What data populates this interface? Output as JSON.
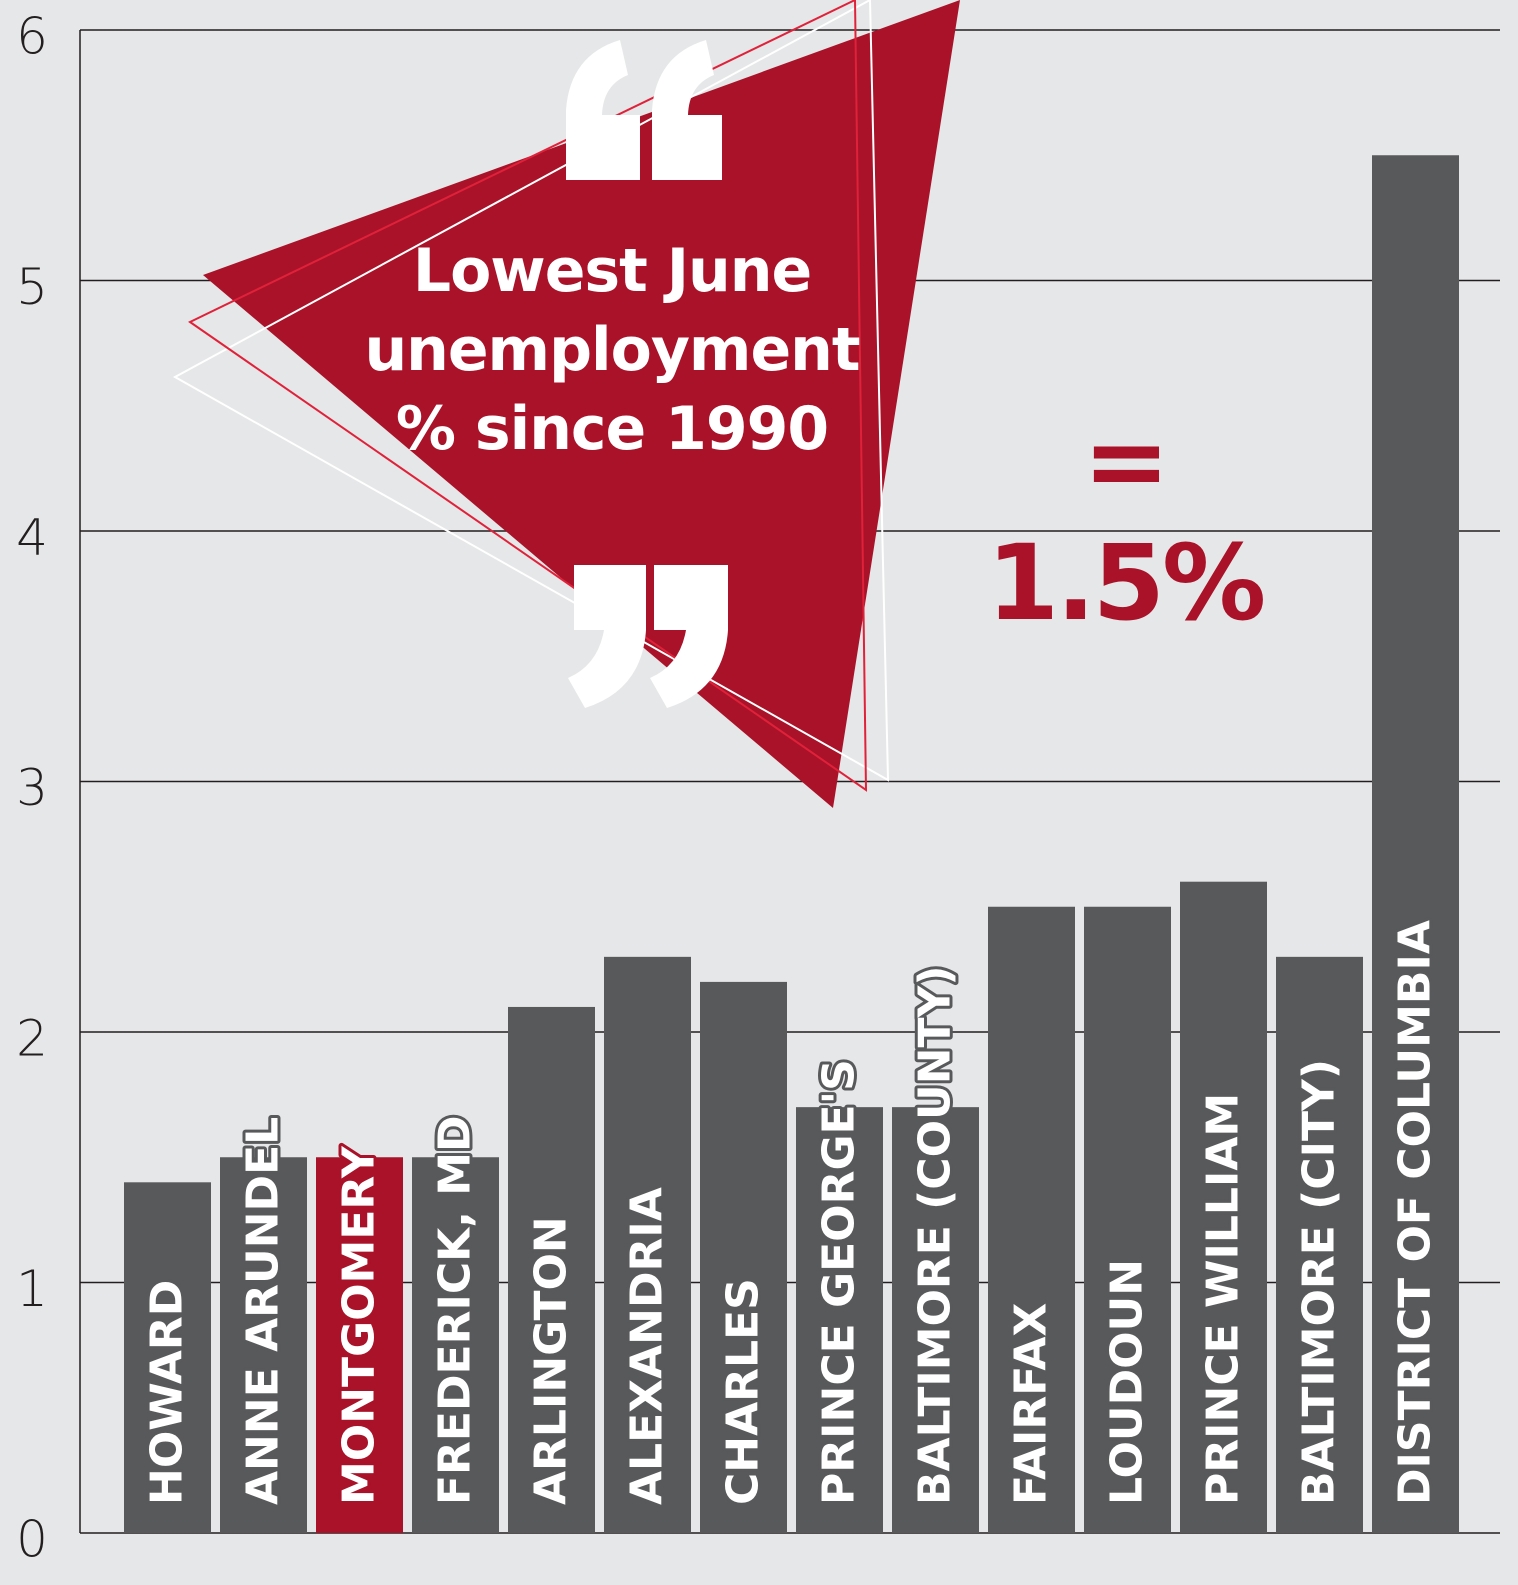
{
  "chart_data": {
    "type": "bar",
    "categories": [
      "HOWARD",
      "ANNE ARUNDEL",
      "MONTGOMERY",
      "FREDERICK, MD",
      "ARLINGTON",
      "ALEXANDRIA",
      "CHARLES",
      "PRINCE GEORGE'S",
      "BALTIMORE (COUNTY)",
      "FAIRFAX",
      "LOUDOUN",
      "PRINCE WILLIAM",
      "BALTIMORE (CITY)",
      "DISTRICT OF COLUMBIA"
    ],
    "values": [
      1.4,
      1.5,
      1.5,
      1.5,
      2.1,
      2.3,
      2.2,
      1.7,
      1.7,
      2.5,
      2.5,
      2.6,
      2.3,
      5.5
    ],
    "colors": [
      "#58595b",
      "#58595b",
      "#a91228",
      "#58595b",
      "#58595b",
      "#58595b",
      "#58595b",
      "#58595b",
      "#58595b",
      "#58595b",
      "#58595b",
      "#58595b",
      "#58595b",
      "#58595b"
    ],
    "ylim": [
      0,
      6
    ],
    "yticks": [
      0,
      1,
      2,
      3,
      4,
      5,
      6
    ],
    "grid": true,
    "annotation": "Lowest June unemployment % since 1990",
    "callout": "= 1.5%"
  }
}
